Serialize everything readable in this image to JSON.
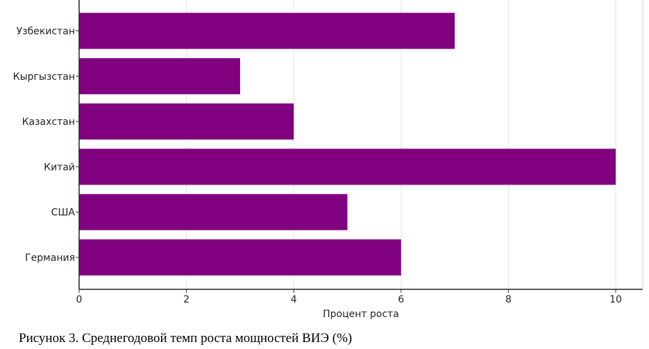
{
  "chart_data": {
    "type": "bar",
    "orientation": "horizontal",
    "categories": [
      "Узбекистан",
      "Кыргызстан",
      "Казахстан",
      "Китай",
      "США",
      "Германия"
    ],
    "values": [
      7,
      3,
      4,
      10,
      5,
      6
    ],
    "xlabel": "Процент роста",
    "ylabel": "",
    "xlim": [
      0,
      10.5
    ],
    "xticks": [
      0,
      2,
      4,
      6,
      8,
      10
    ],
    "grid": "vertical",
    "bar_color": "#800080"
  },
  "caption": "Рисунок 3. Среднегодовой темп роста мощностей ВИЭ (%)"
}
